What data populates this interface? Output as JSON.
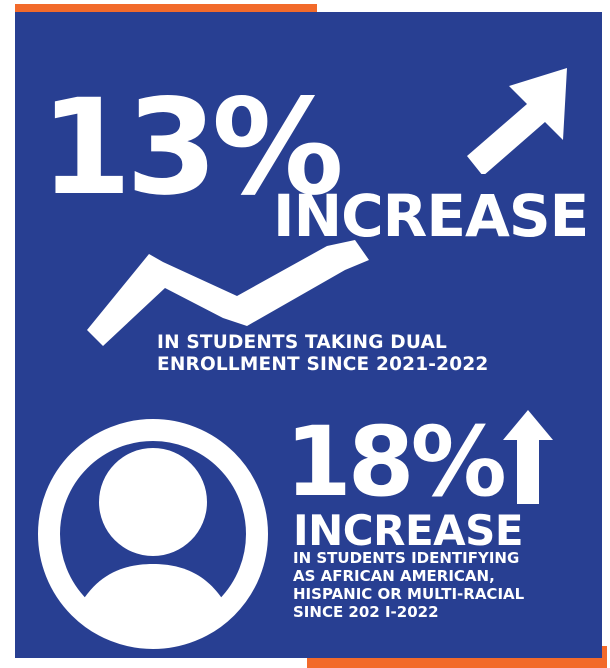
{
  "stat_one": {
    "value": "13%",
    "label": "INCREASE",
    "caption": "IN STUDENTS TAKING DUAL\nENROLLMENT SINCE 2021-2022"
  },
  "stat_two": {
    "value": "18%",
    "label": "INCREASE",
    "caption": "IN STUDENTS IDENTIFYING\nAS AFRICAN AMERICAN,\nHISPANIC OR MULTI-RACIAL\nSINCE 202 I-2022"
  },
  "colors": {
    "background": "#283f92",
    "accent": "#f26a2a",
    "text": "#ffffff"
  },
  "icons": [
    "arrow-up-right-icon",
    "trend-line-icon",
    "person-icon",
    "arrow-up-icon"
  ]
}
